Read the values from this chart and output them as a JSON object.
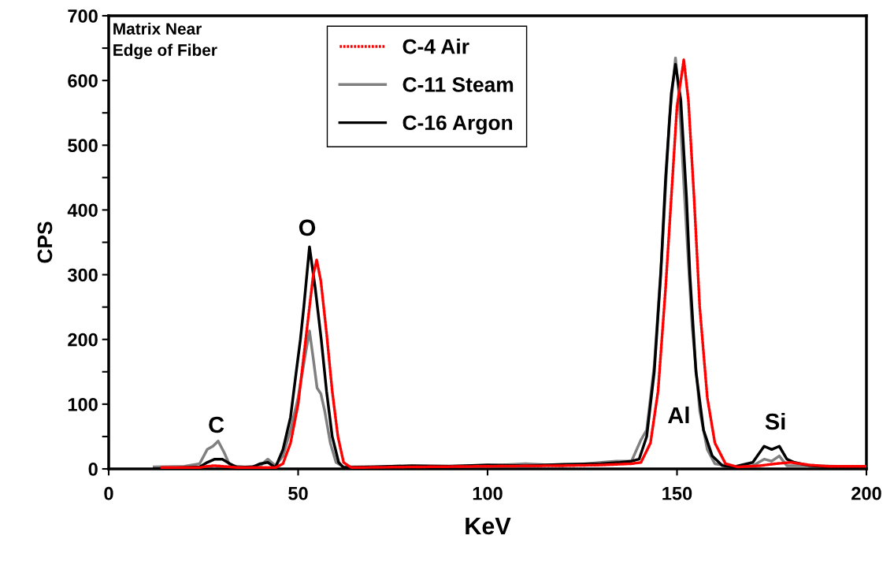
{
  "chart_data": {
    "type": "line",
    "xlabel": "KeV",
    "ylabel": "CPS",
    "xlim": [
      0,
      200
    ],
    "ylim": [
      0,
      700
    ],
    "xticks": [
      0,
      50,
      100,
      150,
      200
    ],
    "yticks": [
      0,
      {
        "value": 50,
        "label": null
      },
      100,
      {
        "value": 150,
        "label": null
      },
      200,
      {
        "value": 250,
        "label": null
      },
      300,
      {
        "value": 350,
        "label": null
      },
      400,
      {
        "value": 450,
        "label": null
      },
      500,
      {
        "value": 550,
        "label": null
      },
      600,
      {
        "value": 650,
        "label": null
      },
      700
    ],
    "grid": false,
    "legend": "top",
    "marker": "none",
    "annotations": [
      "Matrix Near\nEdge of Fiber",
      "C",
      "O",
      "Al",
      "Si"
    ],
    "series": [
      {
        "name": "C-4 Air",
        "color": "#ff0000",
        "line_style": "dotted",
        "x": [
          14,
          24,
          26,
          28,
          30,
          34,
          44,
          46,
          48,
          50,
          52,
          54,
          54.9,
          56,
          57.5,
          59,
          60.5,
          62,
          64,
          80,
          100,
          120,
          130,
          138,
          140.5,
          143,
          145,
          147,
          148.5,
          150,
          151.8,
          153,
          154.5,
          156,
          158,
          160,
          162.8,
          166,
          172,
          176,
          180,
          185,
          190,
          200
        ],
        "values": [
          2,
          2,
          4,
          5,
          4,
          2,
          2,
          8,
          40,
          100,
          200,
          300,
          323,
          290,
          210,
          120,
          50,
          10,
          2,
          3,
          4,
          5,
          6,
          8,
          10,
          40,
          120,
          280,
          420,
          560,
          632,
          570,
          420,
          250,
          110,
          40,
          8,
          3,
          5,
          8,
          10,
          6,
          4,
          4
        ]
      },
      {
        "name": "C-11 Steam",
        "color": "#808080",
        "x": [
          12,
          20,
          24,
          26,
          27.5,
          28.9,
          30.5,
          32,
          36,
          40,
          42,
          44,
          46,
          48,
          50,
          52,
          53,
          54,
          55,
          56,
          57,
          58.5,
          60,
          62,
          80,
          100,
          110,
          120,
          130,
          134,
          138,
          140.5,
          142,
          144,
          146,
          148,
          149.6,
          150.5,
          152,
          154,
          156,
          158,
          160,
          165,
          170,
          173,
          175,
          177,
          179,
          185,
          200
        ],
        "values": [
          3,
          4,
          8,
          30,
          35,
          43,
          25,
          5,
          3,
          5,
          15,
          5,
          20,
          60,
          110,
          180,
          213,
          170,
          125,
          116,
          90,
          40,
          10,
          3,
          4,
          5,
          8,
          5,
          10,
          12,
          12,
          45,
          60,
          160,
          330,
          540,
          635,
          580,
          420,
          220,
          90,
          30,
          8,
          3,
          5,
          15,
          12,
          20,
          5,
          5,
          3
        ]
      },
      {
        "name": "C-16 Argon",
        "color": "#000000",
        "x": [
          12,
          20,
          24,
          26,
          28,
          30,
          32,
          34,
          38,
          40,
          42,
          44,
          46,
          48,
          49.5,
          50.6,
          51.5,
          53,
          54.5,
          56.1,
          57.5,
          59,
          60.7,
          62,
          70,
          80,
          90,
          100,
          110,
          120,
          130,
          135,
          138,
          140,
          142,
          144,
          145.7,
          147,
          148.5,
          149.6,
          151,
          152.5,
          153.4,
          155,
          157,
          159.3,
          162,
          165,
          170,
          173,
          175,
          177,
          179,
          181,
          185,
          190,
          200
        ],
        "values": [
          0,
          2,
          3,
          10,
          15,
          15,
          8,
          2,
          3,
          8,
          10,
          2,
          30,
          80,
          150,
          200,
          250,
          343,
          280,
          200,
          120,
          50,
          10,
          2,
          3,
          5,
          4,
          6,
          5,
          7,
          8,
          10,
          12,
          15,
          50,
          150,
          300,
          450,
          580,
          625,
          570,
          420,
          300,
          150,
          60,
          20,
          5,
          3,
          10,
          35,
          30,
          35,
          15,
          10,
          5,
          3,
          3
        ]
      }
    ]
  }
}
